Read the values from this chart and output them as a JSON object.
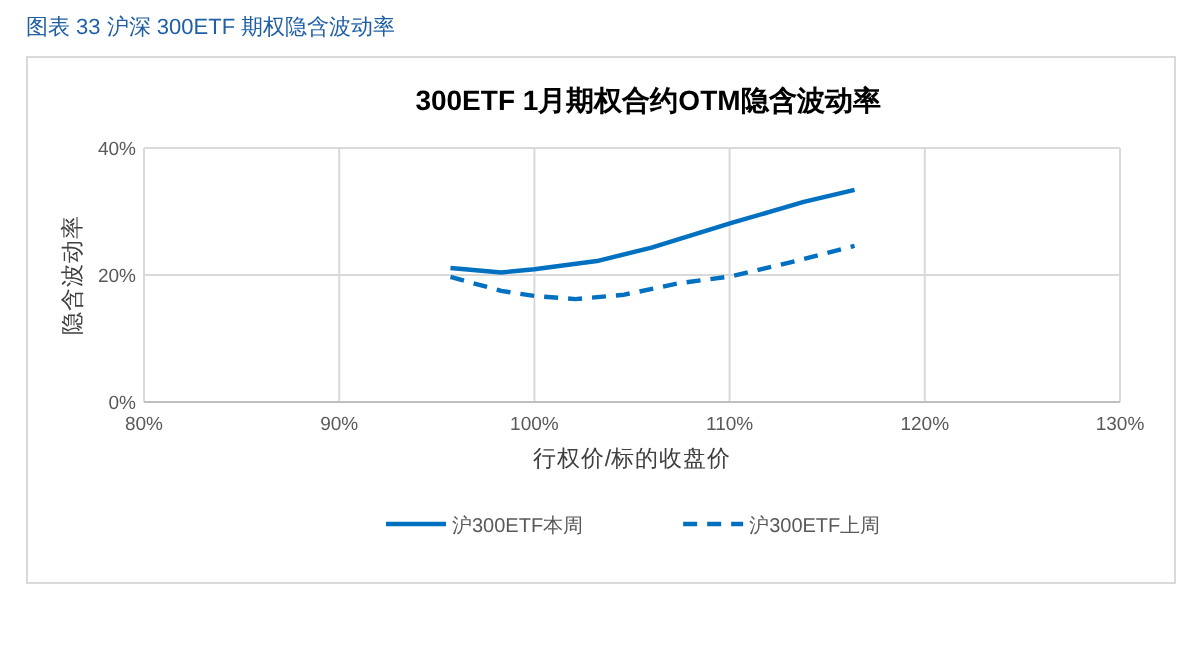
{
  "chart_data": {
    "type": "line",
    "title": "300ETF 1月期权合约OTM隐含波动率",
    "subtitle": "图表 33 沪深 300ETF 期权隐含波动率",
    "xlabel": "行权价/标的收盘价",
    "ylabel": "隐含波动率",
    "xlim": [
      80,
      130
    ],
    "xticks": [
      {
        "value": 80,
        "label": "80%"
      },
      {
        "value": 90,
        "label": "90%"
      },
      {
        "value": 100,
        "label": "100%"
      },
      {
        "value": 110,
        "label": "110%"
      },
      {
        "value": 120,
        "label": "120%"
      },
      {
        "value": 130,
        "label": "130%"
      }
    ],
    "ylim": [
      0,
      40
    ],
    "yticks": [
      {
        "value": 0,
        "label": "0%"
      },
      {
        "value": 20,
        "label": "20%"
      },
      {
        "value": 40,
        "label": "40%"
      }
    ],
    "grid": true,
    "legend": "bottom",
    "series": [
      {
        "name": "沪300ETF本周",
        "color": "#0070c0",
        "line_style": "solid",
        "x": [
          95.7,
          98.3,
          100.0,
          103.2,
          106.0,
          110.1,
          113.8,
          116.4
        ],
        "values": [
          21.1,
          20.4,
          20.9,
          22.2,
          24.3,
          28.2,
          31.5,
          33.4
        ]
      },
      {
        "name": "沪300ETF上周",
        "color": "#0070c0",
        "line_style": "dashed",
        "x": [
          95.7,
          98.3,
          100.0,
          102.1,
          104.6,
          107.4,
          110.1,
          113.4,
          116.4
        ],
        "values": [
          19.7,
          17.5,
          16.7,
          16.2,
          16.9,
          18.7,
          19.8,
          22.2,
          24.6
        ]
      }
    ]
  }
}
